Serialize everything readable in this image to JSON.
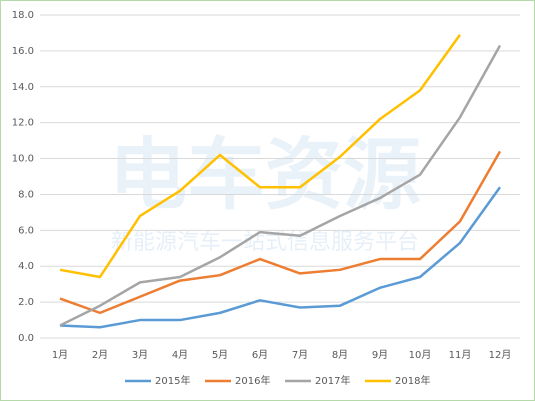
{
  "chart_data": {
    "type": "line",
    "watermark": {
      "title": "电车资源",
      "subtitle": "新能源汽车一站式信息服务平台"
    },
    "categories": [
      "1月",
      "2月",
      "3月",
      "4月",
      "5月",
      "6月",
      "7月",
      "8月",
      "9月",
      "10月",
      "11月",
      "12月"
    ],
    "series": [
      {
        "name": "2015年",
        "color": "#5b9bd5",
        "values": [
          0.7,
          0.6,
          1.0,
          1.0,
          1.4,
          2.1,
          1.7,
          1.8,
          2.8,
          3.4,
          5.3,
          8.4
        ]
      },
      {
        "name": "2016年",
        "color": "#ed7d31",
        "values": [
          2.2,
          1.4,
          2.3,
          3.2,
          3.5,
          4.4,
          3.6,
          3.8,
          4.4,
          4.4,
          6.5,
          10.4
        ]
      },
      {
        "name": "2017年",
        "color": "#a5a5a5",
        "values": [
          0.7,
          1.8,
          3.1,
          3.4,
          4.5,
          5.9,
          5.7,
          6.8,
          7.8,
          9.1,
          12.3,
          16.3
        ]
      },
      {
        "name": "2018年",
        "color": "#ffc000",
        "values": [
          3.8,
          3.4,
          6.8,
          8.2,
          10.2,
          8.4,
          8.4,
          10.1,
          12.2,
          13.8,
          16.9,
          null
        ]
      }
    ],
    "ylim": [
      0,
      18
    ],
    "yticks": [
      {
        "value": 0,
        "label": "0.0"
      },
      {
        "value": 2,
        "label": "2.0"
      },
      {
        "value": 4,
        "label": "4.0"
      },
      {
        "value": 6,
        "label": "6.0"
      },
      {
        "value": 8,
        "label": "8.0"
      },
      {
        "value": 10,
        "label": "10.0"
      },
      {
        "value": 12,
        "label": "12.0"
      },
      {
        "value": 14,
        "label": "14.0"
      },
      {
        "value": 16,
        "label": "16.0"
      },
      {
        "value": 18,
        "label": "18.0"
      }
    ],
    "grid": true,
    "legend": "bottom"
  }
}
